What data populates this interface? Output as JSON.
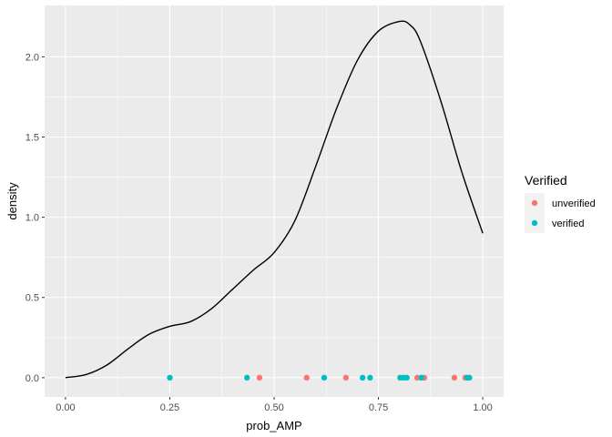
{
  "chart_data": {
    "type": "line",
    "title": "",
    "xlabel": "prob_AMP",
    "ylabel": "density",
    "xlim": [
      -0.05,
      1.05
    ],
    "ylim": [
      -0.12,
      2.32
    ],
    "grid": true,
    "x_ticks": [
      {
        "value": 0.0,
        "label": "0.00"
      },
      {
        "value": 0.25,
        "label": "0.25"
      },
      {
        "value": 0.5,
        "label": "0.50"
      },
      {
        "value": 0.75,
        "label": "0.75"
      },
      {
        "value": 1.0,
        "label": "1.00"
      }
    ],
    "y_ticks": [
      {
        "value": 0.0,
        "label": "0.0"
      },
      {
        "value": 0.5,
        "label": "0.5"
      },
      {
        "value": 1.0,
        "label": "1.0"
      },
      {
        "value": 1.5,
        "label": "1.5"
      },
      {
        "value": 2.0,
        "label": "2.0"
      }
    ],
    "density_curve": {
      "color": "#000000",
      "x": [
        0.0,
        0.05,
        0.1,
        0.15,
        0.2,
        0.25,
        0.3,
        0.35,
        0.4,
        0.45,
        0.5,
        0.55,
        0.6,
        0.65,
        0.7,
        0.75,
        0.8,
        0.825,
        0.85,
        0.9,
        0.95,
        1.0
      ],
      "y": [
        0.0,
        0.02,
        0.08,
        0.18,
        0.27,
        0.32,
        0.35,
        0.43,
        0.55,
        0.67,
        0.78,
        0.98,
        1.32,
        1.68,
        1.98,
        2.16,
        2.22,
        2.2,
        2.1,
        1.72,
        1.28,
        0.9
      ]
    },
    "legend": {
      "title": "Verified",
      "placement": "right",
      "entries": [
        {
          "label": "unverified",
          "color": "#F8766D"
        },
        {
          "label": "verified",
          "color": "#00BFC4"
        }
      ]
    },
    "series": [
      {
        "label": "unverified",
        "color": "#F8766D",
        "x": [
          0.465,
          0.578,
          0.672,
          0.843,
          0.855,
          0.86,
          0.932,
          0.958
        ],
        "y": [
          0,
          0,
          0,
          0,
          0,
          0,
          0,
          0
        ]
      },
      {
        "label": "verified",
        "color": "#00BFC4",
        "x": [
          0.25,
          0.435,
          0.62,
          0.712,
          0.73,
          0.802,
          0.81,
          0.818,
          0.853,
          0.963,
          0.968
        ],
        "y": [
          0,
          0,
          0,
          0,
          0,
          0,
          0,
          0,
          0,
          0,
          0
        ]
      }
    ]
  }
}
